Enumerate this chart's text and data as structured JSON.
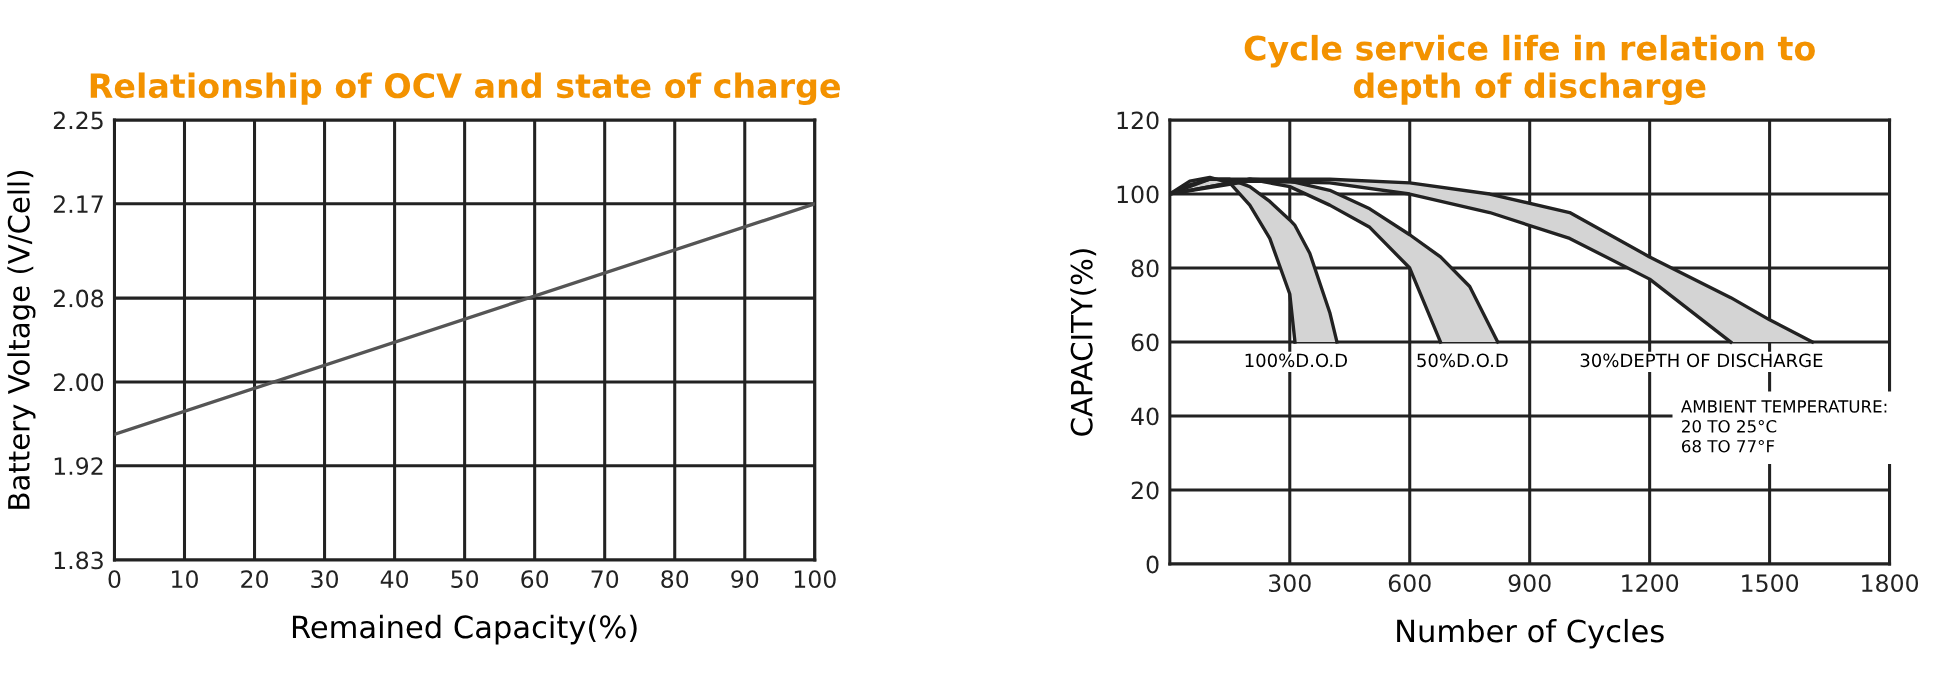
{
  "chart_data": [
    {
      "type": "line",
      "title": "Relationship of OCV and state of charge",
      "xlabel": "Remained Capacity(%)",
      "ylabel": "Battery Voltage (V/Cell)",
      "series": [
        {
          "color": "#555555",
          "x": [
            0,
            100
          ],
          "values": [
            1.95,
            2.17
          ]
        }
      ],
      "xlim": [
        0,
        100
      ],
      "xticks": [
        0,
        10,
        20,
        30,
        40,
        50,
        60,
        70,
        80,
        90,
        100
      ],
      "ylim": [
        1.83,
        2.25
      ],
      "yticks": [
        1.83,
        1.92,
        {
          "value": 2.0,
          "label": "2.00"
        },
        2.08,
        2.17,
        2.25
      ],
      "grid": true,
      "marker": "none",
      "line_style": "solid"
    },
    {
      "type": "line",
      "title": "Cycle service life in relation to\ndepth of discharge",
      "xlabel": "Number of Cycles",
      "ylabel": "CAPACITY(%)",
      "series": [
        {
          "color": "#222222",
          "x": [
            0,
            50,
            100,
            150,
            200,
            250,
            300,
            313
          ],
          "values": [
            100,
            103.5,
            104.5,
            103,
            97,
            88,
            73,
            60
          ]
        },
        {
          "color": "#222222",
          "x": [
            0,
            50,
            100,
            150,
            200,
            250,
            300,
            313,
            350,
            400,
            418
          ],
          "values": [
            100,
            102.5,
            104,
            104,
            102,
            98,
            93,
            91.5,
            84,
            68,
            60
          ]
        },
        {
          "color": "#222222",
          "x": [
            0,
            100,
            200,
            300,
            400,
            500,
            600,
            677
          ],
          "values": [
            100,
            104,
            104,
            102,
            97,
            91,
            80,
            60
          ]
        },
        {
          "color": "#222222",
          "x": [
            0,
            100,
            200,
            300,
            400,
            500,
            600,
            677,
            750,
            820
          ],
          "values": [
            100,
            102,
            104,
            103.5,
            101,
            96,
            89,
            83,
            75,
            60
          ]
        },
        {
          "color": "#222222",
          "x": [
            0,
            200,
            400,
            600,
            800,
            1000,
            1200,
            1403
          ],
          "values": [
            100,
            103.5,
            103,
            100,
            95,
            88,
            77,
            60
          ]
        },
        {
          "color": "#222222",
          "x": [
            0,
            200,
            400,
            600,
            800,
            1000,
            1200,
            1403,
            1500,
            1607
          ],
          "values": [
            100,
            104,
            104,
            103,
            100,
            95,
            83,
            72,
            66,
            60
          ]
        }
      ],
      "annotations": [
        "100%D.O.D",
        "50%D.O.D",
        "30%DEPTH OF DISCHARGE",
        "AMBIENT TEMPERATURE:\n20 TO 25°C\n68 TO 77°F"
      ],
      "xlim": [
        0,
        1800
      ],
      "xticks": [
        300,
        600,
        900,
        1200,
        1500,
        1800
      ],
      "ylim": [
        0,
        120
      ],
      "yticks": [
        0,
        20,
        40,
        60,
        80,
        100,
        120
      ],
      "grid": true,
      "marker": "none",
      "line_style": "solid"
    }
  ]
}
